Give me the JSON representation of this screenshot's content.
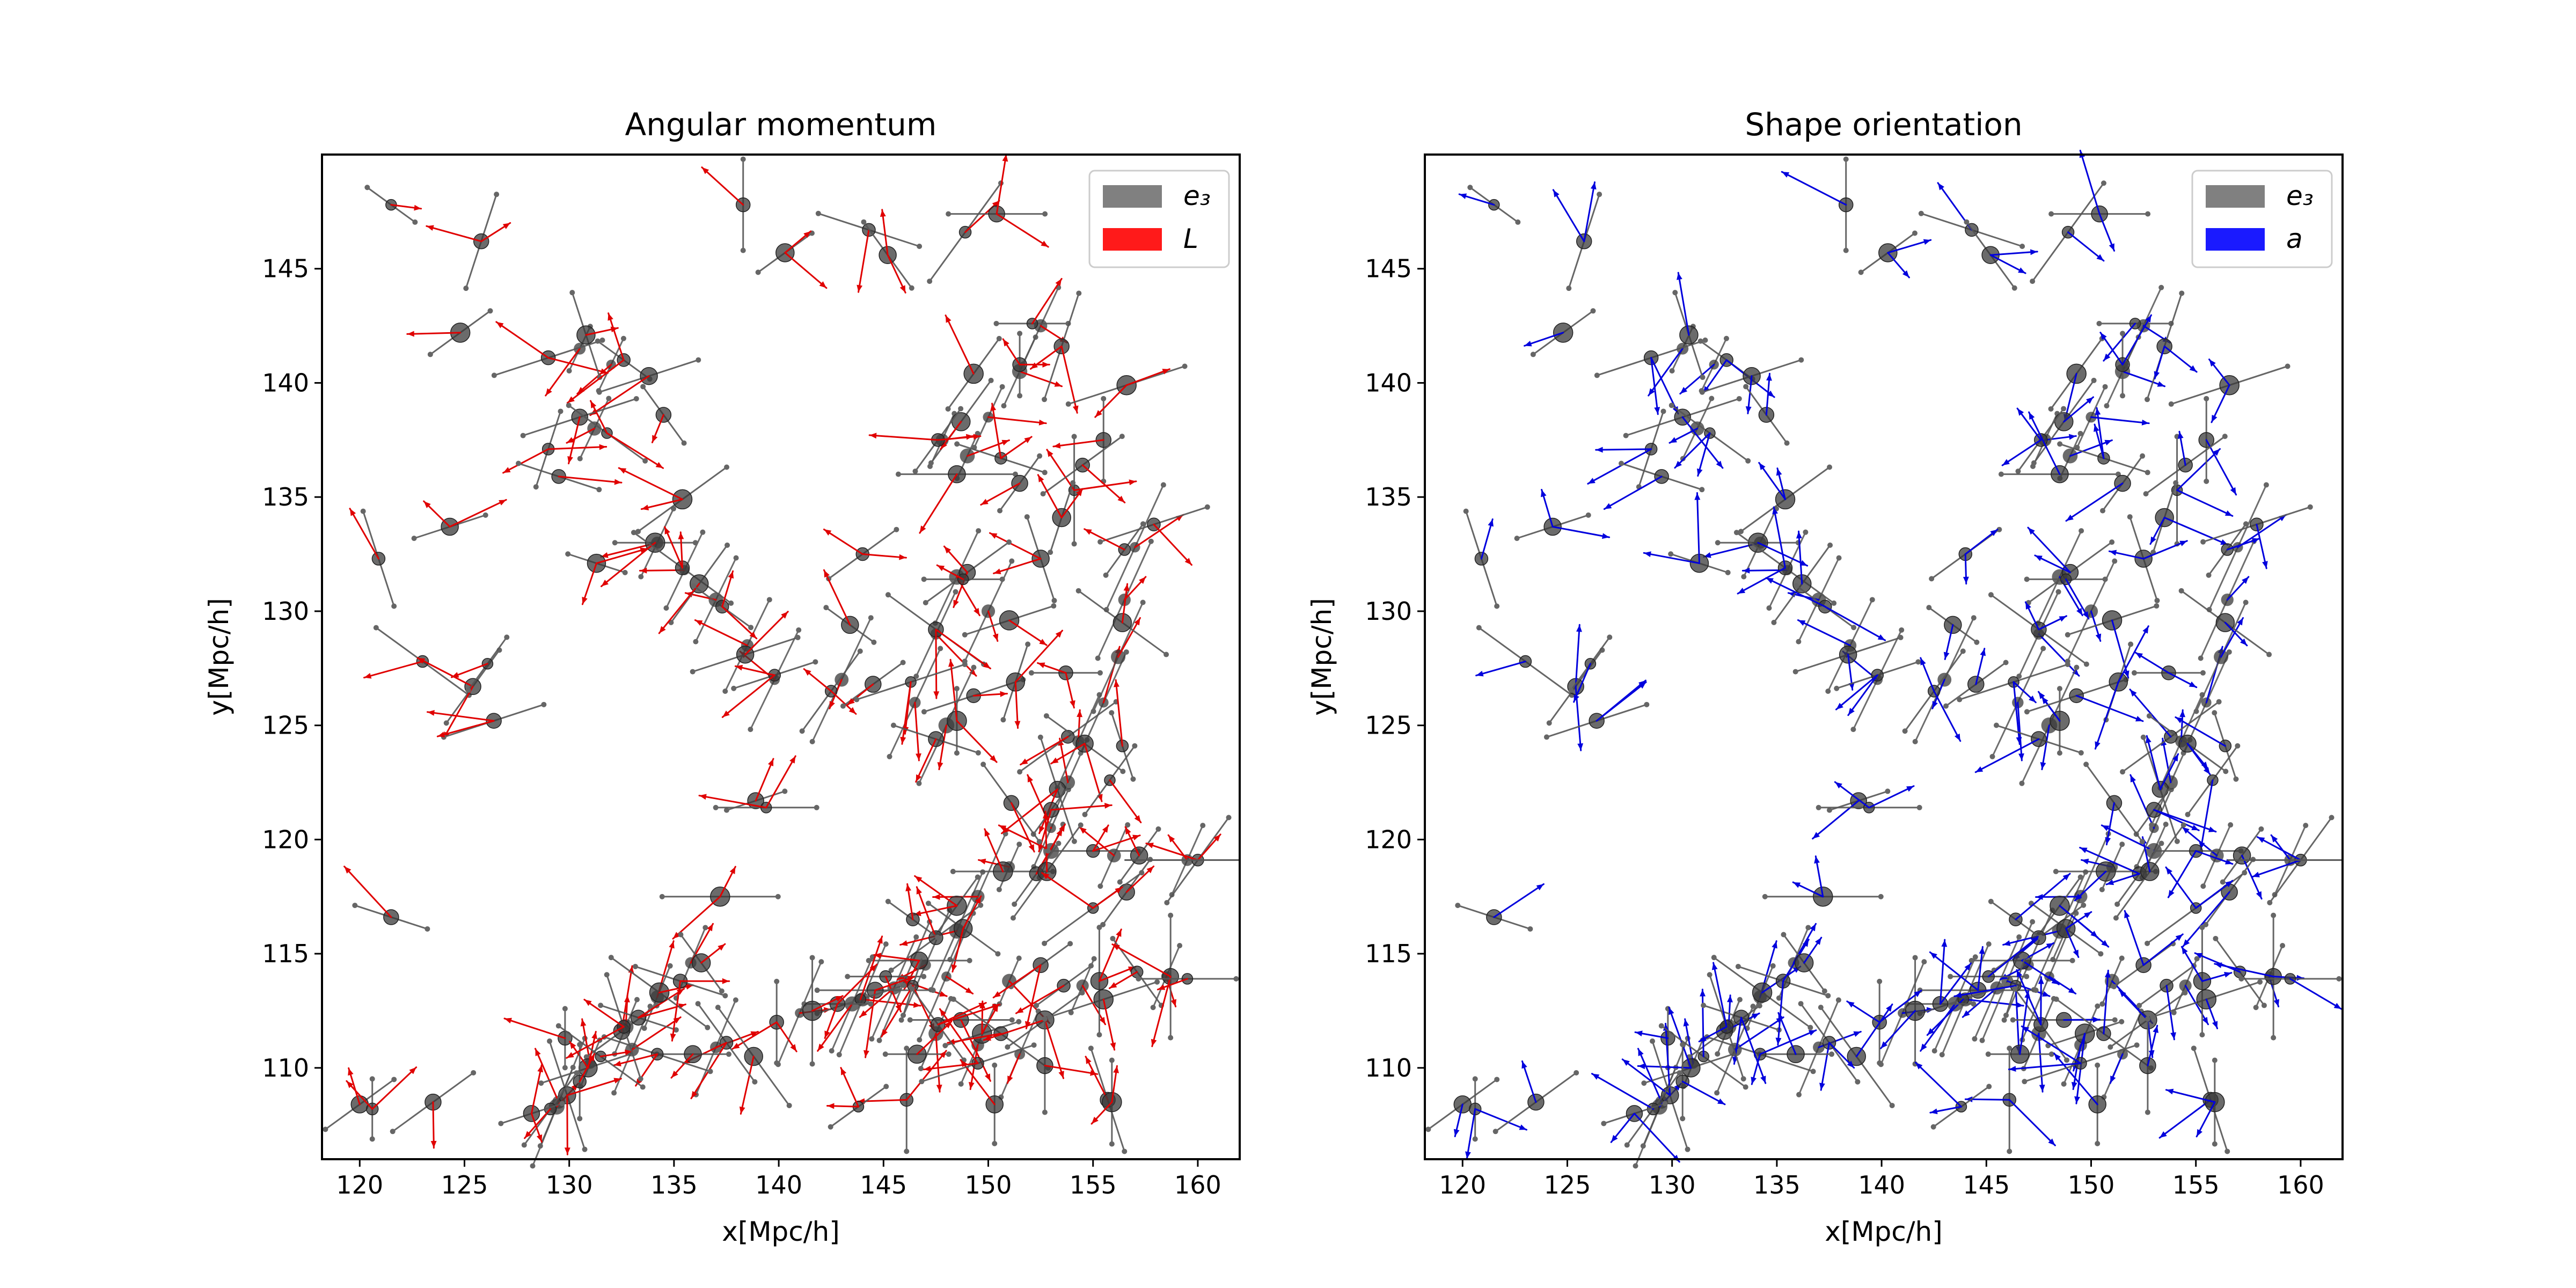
{
  "chart_data": [
    {
      "type": "scatter",
      "title": "Angular momentum",
      "xlabel": "x[Mpc/h]",
      "ylabel": "y[Mpc/h]",
      "xlim": [
        118.2,
        162
      ],
      "ylim": [
        106,
        150
      ],
      "xticks": [
        120,
        125,
        130,
        135,
        140,
        145,
        150,
        155,
        160
      ],
      "yticks": [
        110,
        115,
        120,
        125,
        130,
        135,
        140,
        145
      ],
      "grid": false,
      "legend_position": "top-right",
      "legend": [
        {
          "label": "e₃",
          "color": "#808080"
        },
        {
          "label": "L",
          "color": "#ff1a1a"
        }
      ],
      "series": [
        {
          "name": "e₃",
          "marker": "halo with spine-axis segment",
          "color": "#555555"
        },
        {
          "name": "L",
          "marker": "arrow",
          "color": "#e00000"
        }
      ]
    },
    {
      "type": "scatter",
      "title": "Shape orientation",
      "xlabel": "x[Mpc/h]",
      "ylabel": "y[Mpc/h]",
      "xlim": [
        118.2,
        162
      ],
      "ylim": [
        106,
        150
      ],
      "xticks": [
        120,
        125,
        130,
        135,
        140,
        145,
        150,
        155,
        160
      ],
      "yticks": [
        110,
        115,
        120,
        125,
        130,
        135,
        140,
        145
      ],
      "grid": false,
      "legend_position": "top-right",
      "legend": [
        {
          "label": "e₃",
          "color": "#808080"
        },
        {
          "label": "a",
          "color": "#1a1aff"
        }
      ],
      "series": [
        {
          "name": "e₃",
          "marker": "halo with spine-axis segment",
          "color": "#555555"
        },
        {
          "name": "a",
          "marker": "arrow",
          "color": "#0000dd"
        }
      ]
    }
  ],
  "halos": [
    [
      121.5,
      147.8,
      0.8
    ],
    [
      125.8,
      146.2,
      0.4
    ],
    [
      124.8,
      142.2,
      0.2
    ],
    [
      129.0,
      141.1,
      0.1
    ],
    [
      130.8,
      142.1,
      0.6
    ],
    [
      132.6,
      141.0,
      0.8
    ],
    [
      133.8,
      140.3,
      0.1
    ],
    [
      129.0,
      137.1,
      0.4
    ],
    [
      130.5,
      138.5,
      0.1
    ],
    [
      131.8,
      137.8,
      0.8
    ],
    [
      134.5,
      138.6,
      0.7
    ],
    [
      135.4,
      134.9,
      0.2
    ],
    [
      129.5,
      135.9,
      0.9
    ],
    [
      131.3,
      132.1,
      0.9
    ],
    [
      120.9,
      132.3,
      0.6
    ],
    [
      124.3,
      133.7,
      0.1
    ],
    [
      123.0,
      127.8,
      0.8
    ],
    [
      125.4,
      126.7,
      0.3
    ],
    [
      126.1,
      127.7,
      0.3
    ],
    [
      126.4,
      125.2,
      0.1
    ],
    [
      134.1,
      133.0,
      1.0
    ],
    [
      135.4,
      131.9,
      0.8
    ],
    [
      136.2,
      131.2,
      0.3
    ],
    [
      137.3,
      130.2,
      0.8
    ],
    [
      138.4,
      128.1,
      0.1
    ],
    [
      139.8,
      127.2,
      0.1
    ],
    [
      138.9,
      121.7,
      0.1
    ],
    [
      139.4,
      121.4,
      0.0
    ],
    [
      121.5,
      116.6,
      0.9
    ],
    [
      137.2,
      117.5,
      1.0
    ],
    [
      138.3,
      147.8,
      0.5
    ],
    [
      140.3,
      145.7,
      0.2
    ],
    [
      144.3,
      146.7,
      0.9
    ],
    [
      145.2,
      145.6,
      0.7
    ],
    [
      148.9,
      146.6,
      0.3
    ],
    [
      150.4,
      147.4,
      1.0
    ],
    [
      152.1,
      142.6,
      0.0
    ],
    [
      153.5,
      141.6,
      0.4
    ],
    [
      149.3,
      140.4,
      0.3
    ],
    [
      151.5,
      140.8,
      0.5
    ],
    [
      148.7,
      138.3,
      0.3
    ],
    [
      147.6,
      137.5,
      0.3
    ],
    [
      148.5,
      136.0,
      1.0
    ],
    [
      150.6,
      136.7,
      0.9
    ],
    [
      151.5,
      135.6,
      0.3
    ],
    [
      154.1,
      135.3,
      0.5
    ],
    [
      155.5,
      137.5,
      0.5
    ],
    [
      156.6,
      139.9,
      0.1
    ],
    [
      154.5,
      136.4,
      0.2
    ],
    [
      153.5,
      134.1,
      0.4
    ],
    [
      157.9,
      133.8,
      0.1
    ],
    [
      152.5,
      132.3,
      0.6
    ],
    [
      156.5,
      132.7,
      0.3
    ],
    [
      149.0,
      131.7,
      0.2
    ],
    [
      148.8,
      131.4,
      1.0
    ],
    [
      147.5,
      129.2,
      0.8
    ],
    [
      151.0,
      129.6,
      0.1
    ],
    [
      153.7,
      127.3,
      1.0
    ],
    [
      156.4,
      129.5,
      0.8
    ],
    [
      144.0,
      132.5,
      0.2
    ],
    [
      143.4,
      129.4,
      0.8
    ],
    [
      142.5,
      126.5,
      0.3
    ],
    [
      144.5,
      126.8,
      0.2
    ],
    [
      146.3,
      126.9,
      0.1
    ],
    [
      147.5,
      124.4,
      0.9
    ],
    [
      148.5,
      125.2,
      0.5
    ],
    [
      149.3,
      126.3,
      0.1
    ],
    [
      151.3,
      126.9,
      0.4
    ],
    [
      153.8,
      124.5,
      0.2
    ],
    [
      154.6,
      124.2,
      0.8
    ],
    [
      156.4,
      124.1,
      0.6
    ],
    [
      153.3,
      122.2,
      0.6
    ],
    [
      155.8,
      122.6,
      0.3
    ],
    [
      153.0,
      121.3,
      0.3
    ],
    [
      150.7,
      118.6,
      1.0
    ],
    [
      152.3,
      118.5,
      0.3
    ],
    [
      152.8,
      118.6,
      0.3
    ],
    [
      155.0,
      119.5,
      1.0
    ],
    [
      157.2,
      119.3,
      0.3
    ],
    [
      160.0,
      119.1,
      0.3
    ],
    [
      156.6,
      117.7,
      0.3
    ],
    [
      155.0,
      117.0,
      0.2
    ],
    [
      151.1,
      121.6,
      0.7
    ],
    [
      148.5,
      117.1,
      0.3
    ],
    [
      147.5,
      115.7,
      0.2
    ],
    [
      148.8,
      116.1,
      0.8
    ],
    [
      146.4,
      116.5,
      0.8
    ],
    [
      146.7,
      114.7,
      0.0
    ],
    [
      145.1,
      114.0,
      0.0
    ],
    [
      144.6,
      113.4,
      0.0
    ],
    [
      143.9,
      113.0,
      0.1
    ],
    [
      142.8,
      112.8,
      0.0
    ],
    [
      141.6,
      112.5,
      0.5
    ],
    [
      139.9,
      112.0,
      0.5
    ],
    [
      138.8,
      110.5,
      0.7
    ],
    [
      137.5,
      111.1,
      0.7
    ],
    [
      135.9,
      110.6,
      1.0
    ],
    [
      134.2,
      110.6,
      0.9
    ],
    [
      132.5,
      111.6,
      0.2
    ],
    [
      146.4,
      113.6,
      0.4
    ],
    [
      148.7,
      112.1,
      0.0
    ],
    [
      149.7,
      111.5,
      0.1
    ],
    [
      150.6,
      111.5,
      0.8
    ],
    [
      152.7,
      112.1,
      0.2
    ],
    [
      153.6,
      113.6,
      0.2
    ],
    [
      155.3,
      113.8,
      0.5
    ],
    [
      157.1,
      114.2,
      0.7
    ],
    [
      158.7,
      114.0,
      0.5
    ],
    [
      159.5,
      113.9,
      1.0
    ],
    [
      152.5,
      114.5,
      0.2
    ],
    [
      155.5,
      113.0,
      0.1
    ],
    [
      147.6,
      111.9,
      0.7
    ],
    [
      146.6,
      110.6,
      0.0
    ],
    [
      146.1,
      108.6,
      0.5
    ],
    [
      150.3,
      108.4,
      0.5
    ],
    [
      149.5,
      110.2,
      0.1
    ],
    [
      152.7,
      110.1,
      0.5
    ],
    [
      143.8,
      108.3,
      0.2
    ],
    [
      155.7,
      108.6,
      0.6
    ],
    [
      155.9,
      108.5,
      0.5
    ],
    [
      129.8,
      111.3,
      0.5
    ],
    [
      130.9,
      110.0,
      0.1
    ],
    [
      130.5,
      109.4,
      0.5
    ],
    [
      129.9,
      108.8,
      0.6
    ],
    [
      129.1,
      108.2,
      0.3
    ],
    [
      128.2,
      108.0,
      0.1
    ],
    [
      131.5,
      110.5,
      0.8
    ],
    [
      133.3,
      112.2,
      0.9
    ],
    [
      134.3,
      113.3,
      0.8
    ],
    [
      135.3,
      113.8,
      0.9
    ],
    [
      136.3,
      114.6,
      0.7
    ],
    [
      132.6,
      111.8,
      0.6
    ],
    [
      120.0,
      108.4,
      0.2
    ],
    [
      120.6,
      108.2,
      0.5
    ],
    [
      123.5,
      108.5,
      0.2
    ]
  ],
  "filament_points": [
    [
      129.5,
      108.5
    ],
    [
      131.0,
      110.2
    ],
    [
      132.7,
      111.8
    ],
    [
      134.2,
      113.1
    ],
    [
      135.8,
      114.6
    ],
    [
      129.4,
      108.3
    ],
    [
      133.0,
      110.8
    ],
    [
      137.0,
      110.9
    ],
    [
      141.0,
      112.4
    ],
    [
      144.0,
      113.0
    ],
    [
      146.0,
      113.8
    ],
    [
      148.0,
      114.0
    ],
    [
      151.0,
      113.8
    ],
    [
      154.5,
      113.6
    ],
    [
      158.5,
      114.0
    ],
    [
      147.5,
      111.5
    ],
    [
      149.5,
      111.0
    ],
    [
      151.5,
      110.6
    ],
    [
      143.5,
      112.8
    ],
    [
      145.5,
      113.5
    ],
    [
      147.0,
      114.5
    ],
    [
      148.5,
      116.0
    ],
    [
      149.5,
      117.5
    ],
    [
      151.0,
      118.8
    ],
    [
      153.0,
      119.5
    ],
    [
      156.0,
      119.3
    ],
    [
      159.5,
      119.1
    ],
    [
      153.0,
      120.5
    ],
    [
      153.8,
      122.5
    ],
    [
      154.3,
      124.3
    ],
    [
      155.5,
      126.0
    ],
    [
      156.2,
      128.0
    ],
    [
      156.5,
      130.5
    ],
    [
      157.0,
      132.8
    ],
    [
      149.0,
      136.8
    ],
    [
      147.8,
      137.5
    ],
    [
      150.0,
      138.5
    ],
    [
      151.5,
      140.5
    ],
    [
      152.5,
      142.5
    ],
    [
      147.5,
      129.0
    ],
    [
      148.5,
      131.5
    ],
    [
      150.0,
      130.0
    ],
    [
      146.5,
      126.0
    ],
    [
      148.0,
      125.0
    ],
    [
      143.0,
      127.0
    ],
    [
      130.5,
      141.5
    ],
    [
      132.0,
      140.8
    ],
    [
      131.2,
      138.0
    ],
    [
      134.2,
      133.0
    ],
    [
      135.5,
      131.8
    ],
    [
      137.0,
      130.5
    ],
    [
      138.5,
      128.5
    ],
    [
      139.8,
      127.0
    ]
  ]
}
